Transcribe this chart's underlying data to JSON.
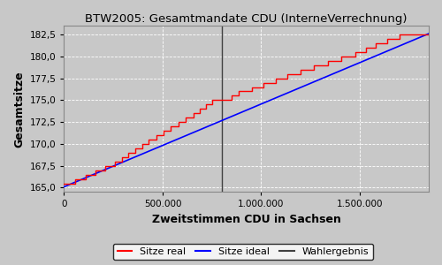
{
  "title": "BTW2005: Gesamtmandate CDU (InterneVerrechnung)",
  "xlabel": "Zweitstimmen CDU in Sachsen",
  "ylabel": "Gesamtsitze",
  "x_min": 0,
  "x_max": 1850000,
  "y_min": 164.5,
  "y_max": 183.5,
  "wahlergebnis_x": 800000,
  "background_color": "#C8C8C8",
  "grid_color": "white",
  "legend_labels": [
    "Sitze real",
    "Sitze ideal",
    "Wahlergebnis"
  ],
  "ideal_y_start": 165.1,
  "ideal_y_end": 182.6,
  "real_steps": [
    [
      0,
      165.5
    ],
    [
      55000,
      165.5
    ],
    [
      55000,
      166.0
    ],
    [
      110000,
      166.0
    ],
    [
      110000,
      166.5
    ],
    [
      160000,
      166.5
    ],
    [
      160000,
      167.0
    ],
    [
      210000,
      167.0
    ],
    [
      210000,
      167.5
    ],
    [
      260000,
      167.5
    ],
    [
      260000,
      168.0
    ],
    [
      295000,
      168.0
    ],
    [
      295000,
      168.5
    ],
    [
      325000,
      168.5
    ],
    [
      325000,
      169.0
    ],
    [
      360000,
      169.0
    ],
    [
      360000,
      169.5
    ],
    [
      395000,
      169.5
    ],
    [
      395000,
      170.0
    ],
    [
      430000,
      170.0
    ],
    [
      430000,
      170.5
    ],
    [
      468000,
      170.5
    ],
    [
      468000,
      171.0
    ],
    [
      505000,
      171.0
    ],
    [
      505000,
      171.5
    ],
    [
      542000,
      171.5
    ],
    [
      542000,
      172.0
    ],
    [
      580000,
      172.0
    ],
    [
      580000,
      172.5
    ],
    [
      618000,
      172.5
    ],
    [
      618000,
      173.0
    ],
    [
      655000,
      173.0
    ],
    [
      655000,
      173.5
    ],
    [
      690000,
      173.5
    ],
    [
      690000,
      174.0
    ],
    [
      720000,
      174.0
    ],
    [
      720000,
      174.5
    ],
    [
      752000,
      174.5
    ],
    [
      752000,
      175.0
    ],
    [
      800000,
      175.0
    ],
    [
      848000,
      175.0
    ],
    [
      848000,
      175.5
    ],
    [
      885000,
      175.5
    ],
    [
      885000,
      176.0
    ],
    [
      952000,
      176.0
    ],
    [
      952000,
      176.5
    ],
    [
      1012000,
      176.5
    ],
    [
      1012000,
      177.0
    ],
    [
      1072000,
      177.0
    ],
    [
      1072000,
      177.5
    ],
    [
      1133000,
      177.5
    ],
    [
      1133000,
      178.0
    ],
    [
      1200000,
      178.0
    ],
    [
      1200000,
      178.5
    ],
    [
      1268000,
      178.5
    ],
    [
      1268000,
      179.0
    ],
    [
      1337000,
      179.0
    ],
    [
      1337000,
      179.5
    ],
    [
      1407000,
      179.5
    ],
    [
      1407000,
      180.0
    ],
    [
      1478000,
      180.0
    ],
    [
      1478000,
      180.5
    ],
    [
      1530000,
      180.5
    ],
    [
      1530000,
      181.0
    ],
    [
      1582000,
      181.0
    ],
    [
      1582000,
      181.5
    ],
    [
      1640000,
      181.5
    ],
    [
      1640000,
      182.0
    ],
    [
      1700000,
      182.0
    ],
    [
      1700000,
      182.5
    ],
    [
      1850000,
      182.5
    ]
  ],
  "yticks": [
    165.0,
    167.5,
    170.0,
    172.5,
    175.0,
    177.5,
    180.0,
    182.5
  ],
  "xticks": [
    0,
    500000,
    1000000,
    1500000
  ],
  "xtick_labels": [
    "0",
    "500.000",
    "1.000.000",
    "1.500.000"
  ],
  "ytick_labels": [
    "165,0",
    "167,5",
    "170,0",
    "172,5",
    "175,0",
    "177,5",
    "180,0",
    "182,5"
  ]
}
